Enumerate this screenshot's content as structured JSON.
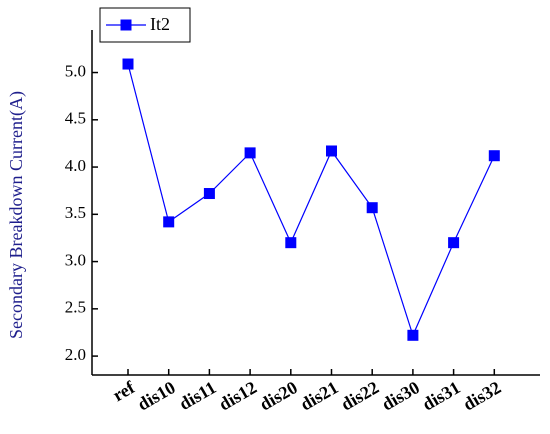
{
  "chart_data": {
    "type": "line",
    "y_label": "Secondary Breakdown Current(A)",
    "categories": [
      "ref",
      "dis10",
      "dis11",
      "dis12",
      "dis20",
      "dis21",
      "dis22",
      "dis30",
      "dis31",
      "dis32"
    ],
    "series": [
      {
        "name": "It2",
        "color": "#0000ff",
        "values": [
          5.09,
          3.42,
          3.72,
          4.15,
          3.2,
          4.17,
          3.57,
          2.22,
          3.2,
          4.12
        ]
      }
    ],
    "ylim": [
      1.8,
      5.45
    ],
    "yticks": [
      {
        "value": 2,
        "label": "2.0"
      },
      {
        "value": 2.5,
        "label": "2.5"
      },
      {
        "value": 3,
        "label": "3.0"
      },
      {
        "value": 3.5,
        "label": "3.5"
      },
      {
        "value": 4,
        "label": "4.0"
      },
      {
        "value": 4.5,
        "label": "4.5"
      },
      {
        "value": 5,
        "label": "5.0"
      }
    ],
    "legend": "top-left"
  }
}
